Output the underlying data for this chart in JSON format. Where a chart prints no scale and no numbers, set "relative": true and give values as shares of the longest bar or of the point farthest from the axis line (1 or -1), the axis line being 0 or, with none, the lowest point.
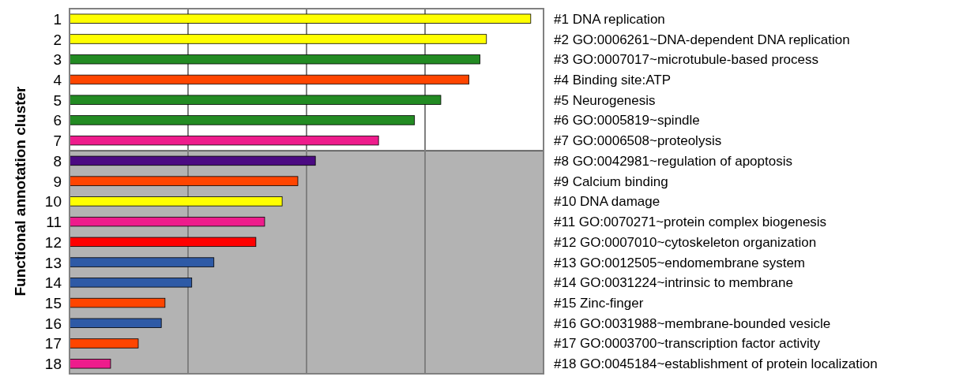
{
  "chart_data": {
    "type": "bar",
    "orientation": "horizontal",
    "relative": true,
    "ylabel": "Functional annotation cluster",
    "grid": "x",
    "categories": [
      "1",
      "2",
      "3",
      "4",
      "5",
      "6",
      "7",
      "8",
      "9",
      "10",
      "11",
      "12",
      "13",
      "14",
      "15",
      "16",
      "17",
      "18"
    ],
    "values": [
      1,
      0.904,
      0.89,
      0.866,
      0.805,
      0.748,
      0.67,
      0.533,
      0.495,
      0.461,
      0.423,
      0.404,
      0.313,
      0.265,
      0.207,
      0.199,
      0.149,
      0.089
    ],
    "colors": [
      "#ffff00",
      "#ffff00",
      "#238b23",
      "#ff4500",
      "#238b23",
      "#238b23",
      "#ee1c8c",
      "#4b0a82",
      "#ff4500",
      "#ffff00",
      "#ee1c8c",
      "#ff0000",
      "#2e5aa6",
      "#2e5aa6",
      "#ff4500",
      "#2e5aa6",
      "#ff4500",
      "#ee1c8c"
    ],
    "bands": [
      {
        "axis": "y",
        "from": "8",
        "to": "18",
        "color": "#b3b3b3"
      }
    ],
    "annotations": [
      "#1 DNA replication",
      "#2 GO:0006261~DNA-dependent DNA replication",
      "#3 GO:0007017~microtubule-based process",
      "#4 Binding site:ATP",
      "#5 Neurogenesis",
      "#6 GO:0005819~spindle",
      "#7 GO:0006508~proteolysis",
      "#8 GO:0042981~regulation of apoptosis",
      "#9 Calcium binding",
      "#10 DNA damage",
      "#11 GO:0070271~protein complex biogenesis",
      "#12 GO:0007010~cytoskeleton organization",
      "#13 GO:0012505~endomembrane system",
      "#14 GO:0031224~intrinsic to membrane",
      "#15 Zinc-finger",
      "#16 GO:0031988~membrane-bounded vesicle",
      "#17 GO:0003700~transcription factor activity",
      "#18 GO:0045184~establishment of protein localization"
    ]
  }
}
